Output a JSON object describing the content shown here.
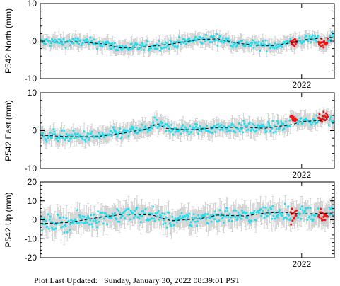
{
  "chart_data": [
    {
      "type": "scatter",
      "ylabel": "P542 North (mm)",
      "ylim": [
        -10,
        10
      ],
      "yticks": [
        -10,
        0,
        10
      ],
      "xlim": [
        2019.2,
        2022.35
      ],
      "xtick_label": "2022",
      "xtick_value": 2022.0,
      "grid": false,
      "series": [
        {
          "role": "cleaned daily solutions",
          "color": "#22ddee",
          "trend": [
            [
              2019.2,
              -0.3
            ],
            [
              2019.6,
              -0.2
            ],
            [
              2019.9,
              -0.8
            ],
            [
              2020.05,
              -1.8
            ],
            [
              2020.3,
              -1.6
            ],
            [
              2020.6,
              -0.8
            ],
            [
              2020.9,
              0.4
            ],
            [
              2021.1,
              0.6
            ],
            [
              2021.3,
              -0.5
            ],
            [
              2021.5,
              -1.1
            ],
            [
              2021.7,
              -1.2
            ],
            [
              2021.9,
              -0.4
            ],
            [
              2022.0,
              0.3
            ],
            [
              2022.3,
              1.0
            ]
          ],
          "noise": 1.2
        },
        {
          "role": "rapid solutions",
          "color": "#ee1111",
          "ranges": [
            [
              2021.88,
              2021.95
            ],
            [
              2022.18,
              2022.28
            ]
          ],
          "center": -0.5,
          "noise": 1.5
        },
        {
          "role": "model fit",
          "color": "#000000",
          "style": "dashed"
        }
      ]
    },
    {
      "type": "scatter",
      "ylabel": "P542 East (mm)",
      "ylim": [
        -10,
        10
      ],
      "yticks": [
        -10,
        0,
        10
      ],
      "xlim": [
        2019.2,
        2022.35
      ],
      "xtick_label": "2022",
      "xtick_value": 2022.0,
      "grid": false,
      "series": [
        {
          "role": "cleaned daily solutions",
          "color": "#22ddee",
          "trend": [
            [
              2019.2,
              -1.2
            ],
            [
              2019.5,
              -1.6
            ],
            [
              2019.8,
              -1.6
            ],
            [
              2020.1,
              -0.6
            ],
            [
              2020.35,
              0.5
            ],
            [
              2020.45,
              1.8
            ],
            [
              2020.55,
              0.6
            ],
            [
              2020.8,
              0.2
            ],
            [
              2021.1,
              0.8
            ],
            [
              2021.4,
              0.9
            ],
            [
              2021.6,
              0.6
            ],
            [
              2021.9,
              1.6
            ],
            [
              2022.0,
              2.4
            ],
            [
              2022.3,
              2.8
            ]
          ],
          "noise": 1.4
        },
        {
          "role": "rapid solutions",
          "color": "#ee1111",
          "ranges": [
            [
              2021.88,
              2021.95
            ],
            [
              2022.18,
              2022.28
            ]
          ],
          "center": 3.5,
          "noise": 1.2
        },
        {
          "role": "model fit",
          "color": "#000000",
          "style": "dashed"
        }
      ]
    },
    {
      "type": "scatter",
      "ylabel": "P542 Up (mm)",
      "ylim": [
        -20,
        20
      ],
      "yticks": [
        -20,
        -10,
        0,
        10,
        20
      ],
      "xlim": [
        2019.2,
        2022.35
      ],
      "xtick_label": "2022",
      "xtick_value": 2022.0,
      "grid": false,
      "series": [
        {
          "role": "cleaned daily solutions",
          "color": "#22ddee",
          "trend": [
            [
              2019.2,
              -2.0
            ],
            [
              2019.5,
              -1.5
            ],
            [
              2019.8,
              1.0
            ],
            [
              2020.1,
              3.0
            ],
            [
              2020.4,
              2.5
            ],
            [
              2020.6,
              -0.5
            ],
            [
              2020.9,
              0.5
            ],
            [
              2021.1,
              2.5
            ],
            [
              2021.4,
              2.0
            ],
            [
              2021.6,
              3.5
            ],
            [
              2021.8,
              4.0
            ],
            [
              2022.0,
              3.0
            ],
            [
              2022.3,
              3.5
            ]
          ],
          "noise": 4.0
        },
        {
          "role": "rapid solutions",
          "color": "#ee1111",
          "ranges": [
            [
              2021.88,
              2021.95
            ],
            [
              2022.18,
              2022.28
            ]
          ],
          "center": 2.0,
          "noise": 4.5
        },
        {
          "role": "model fit",
          "color": "#000000",
          "style": "dashed"
        }
      ]
    }
  ],
  "footer": {
    "prefix": "Plot Last Updated:",
    "timestamp": "Sunday, January 30, 2022 08:39:01 PST"
  }
}
